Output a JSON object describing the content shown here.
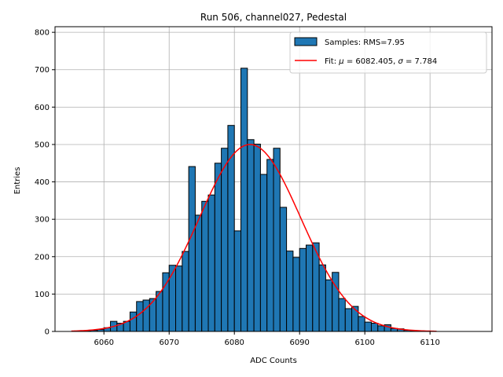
{
  "chart_data": {
    "type": "bar",
    "title": "Run 506, channel027, Pedestal",
    "xlabel": "ADC Counts",
    "ylabel": "Entries",
    "xlim": [
      6052.5,
      6119.5
    ],
    "ylim": [
      0,
      815
    ],
    "grid": true,
    "bar_color": "#1f77b4",
    "bar_edge_color": "#000000",
    "fit_color": "#ff0000",
    "x_ticks": [
      6060,
      6070,
      6080,
      6090,
      6100,
      6110
    ],
    "y_ticks": [
      0,
      100,
      200,
      300,
      400,
      500,
      600,
      700,
      800
    ],
    "bin_start": 6057,
    "bin_width": 1,
    "counts": [
      1,
      3,
      5,
      10,
      27,
      22,
      27,
      52,
      80,
      84,
      88,
      107,
      157,
      177,
      175,
      214,
      441,
      311,
      348,
      365,
      450,
      490,
      551,
      269,
      704,
      513,
      501,
      420,
      460,
      490,
      332,
      215,
      198,
      222,
      231,
      237,
      178,
      138,
      158,
      88,
      61,
      67,
      40,
      25,
      22,
      15,
      18,
      8,
      7,
      3,
      2,
      1
    ],
    "fit": {
      "mu": 6082.405,
      "sigma": 7.784,
      "amplitude": 500,
      "x_range": [
        6055,
        6111
      ]
    },
    "legend": {
      "position": "upper-right",
      "samples_label": "Samples: RMS=7.95",
      "fit_prefix": "Fit: ",
      "mu_symbol": "μ",
      "fit_middle": " = 6082.405, ",
      "sigma_symbol": "σ",
      "fit_suffix": " = 7.784"
    }
  }
}
